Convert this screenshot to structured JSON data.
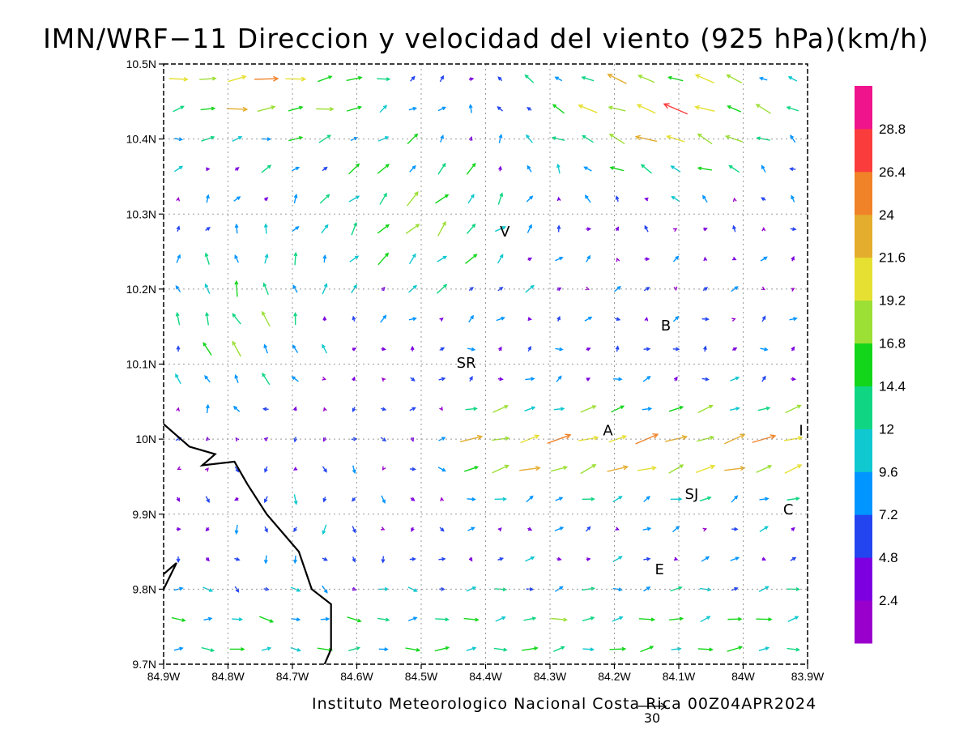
{
  "title": "IMN/WRF−11 Direccion y velocidad del viento (925 hPa)(km/h)",
  "footer": "Instituto Meteorologico Nacional Costa Rica 00Z04APR2024",
  "reference_vector": {
    "label": "30",
    "speed": 30
  },
  "chart_data": {
    "type": "vector_field",
    "x_axis": {
      "ticks": [
        "84.9W",
        "84.8W",
        "84.7W",
        "84.6W",
        "84.5W",
        "84.4W",
        "84.3W",
        "84.2W",
        "84.1W",
        "84W",
        "83.9W"
      ],
      "range": [
        -84.9,
        -83.9
      ]
    },
    "y_axis": {
      "ticks": [
        "9.7N",
        "9.8N",
        "9.9N",
        "10N",
        "10.1N",
        "10.2N",
        "10.3N",
        "10.4N",
        "10.5N"
      ],
      "range": [
        9.7,
        10.5
      ]
    },
    "grid": true,
    "colorbar": {
      "labels": [
        "2.4",
        "4.8",
        "7.2",
        "9.6",
        "12",
        "14.4",
        "16.8",
        "19.2",
        "21.6",
        "24",
        "26.4",
        "28.8"
      ],
      "colors": [
        "#9900cc",
        "#7d00e0",
        "#2345f0",
        "#0095ff",
        "#10c8cf",
        "#10d683",
        "#13d61a",
        "#9cdf35",
        "#e6e032",
        "#e4ad2e",
        "#f08228",
        "#fa3c3c",
        "#f0148c"
      ]
    },
    "coastline": [
      [
        -84.9,
        10.02
      ],
      [
        -84.86,
        9.99
      ],
      [
        -84.82,
        9.98
      ],
      [
        -84.84,
        9.965
      ],
      [
        -84.79,
        9.97
      ],
      [
        -84.77,
        9.94
      ],
      [
        -84.74,
        9.9
      ],
      [
        -84.72,
        9.88
      ],
      [
        -84.69,
        9.85
      ],
      [
        -84.67,
        9.8
      ],
      [
        -84.64,
        9.78
      ],
      [
        -84.64,
        9.72
      ],
      [
        -84.65,
        9.7
      ]
    ],
    "coastline_2": [
      [
        -84.9,
        9.82
      ],
      [
        -84.88,
        9.835
      ],
      [
        -84.9,
        9.8
      ]
    ],
    "stations": [
      {
        "label": "V",
        "lon": -84.37,
        "lat": 10.27
      },
      {
        "label": "SR",
        "lon": -84.43,
        "lat": 10.095
      },
      {
        "label": "B",
        "lon": -84.12,
        "lat": 10.145
      },
      {
        "label": "A",
        "lon": -84.21,
        "lat": 10.005
      },
      {
        "label": "I",
        "lon": -83.91,
        "lat": 10.005
      },
      {
        "label": "SJ",
        "lon": -84.08,
        "lat": 9.92
      },
      {
        "label": "C",
        "lon": -83.93,
        "lat": 9.9
      },
      {
        "label": "E",
        "lon": -84.13,
        "lat": 9.82
      }
    ],
    "wind_field_note": "Dense gridded wind vectors colored by speed (km/h)"
  }
}
